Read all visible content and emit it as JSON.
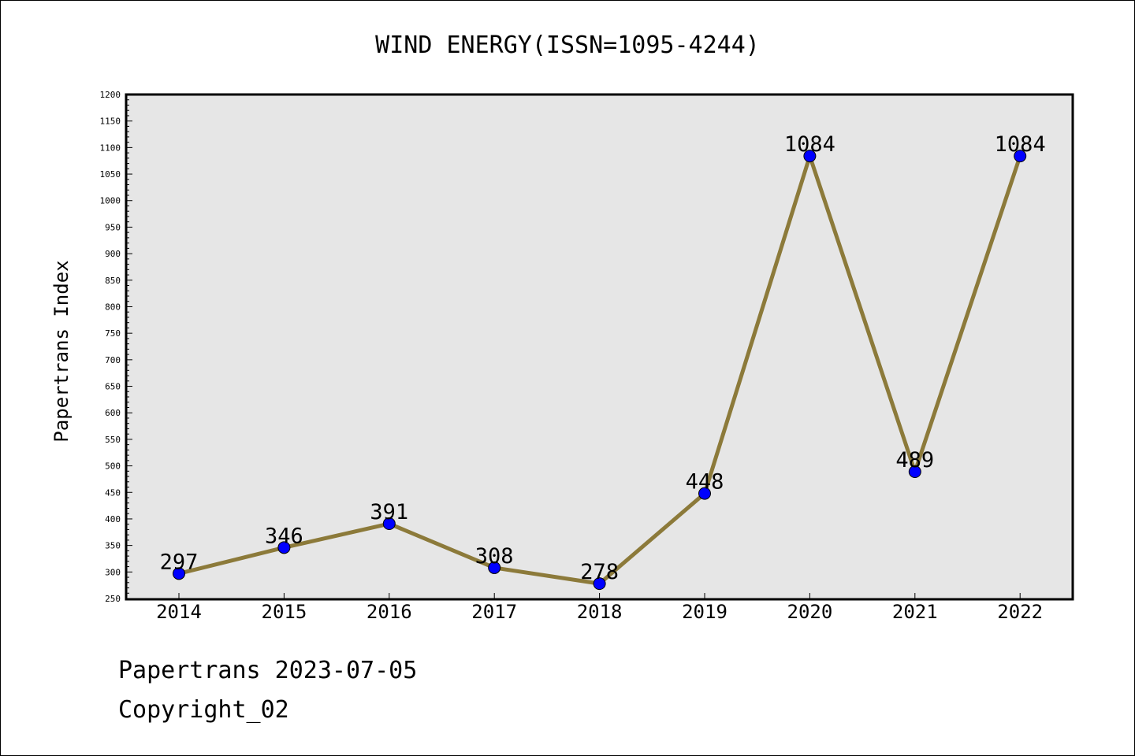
{
  "chart_data": {
    "type": "line",
    "title": "WIND ENERGY(ISSN=1095-4244)",
    "xlabel": "",
    "ylabel": "Papertrans Index",
    "categories": [
      "2014",
      "2015",
      "2016",
      "2017",
      "2018",
      "2019",
      "2020",
      "2021",
      "2022"
    ],
    "series": [
      {
        "values": [
          297,
          346,
          391,
          308,
          278,
          448,
          1084,
          489,
          1084
        ]
      }
    ],
    "ylim": [
      250,
      1200
    ],
    "yticks": [
      250,
      300,
      350,
      400,
      450,
      500,
      550,
      600,
      650,
      700,
      750,
      800,
      850,
      900,
      950,
      1000,
      1050,
      1100,
      1150,
      1200
    ],
    "grid": false,
    "legend": "none",
    "colors": {
      "line": "#8c7a3a",
      "marker": "#0000ff",
      "plot_background": "#e6e6e6"
    }
  },
  "footer": {
    "line1": "Papertrans 2023-07-05",
    "line2": "Copyright_02"
  }
}
